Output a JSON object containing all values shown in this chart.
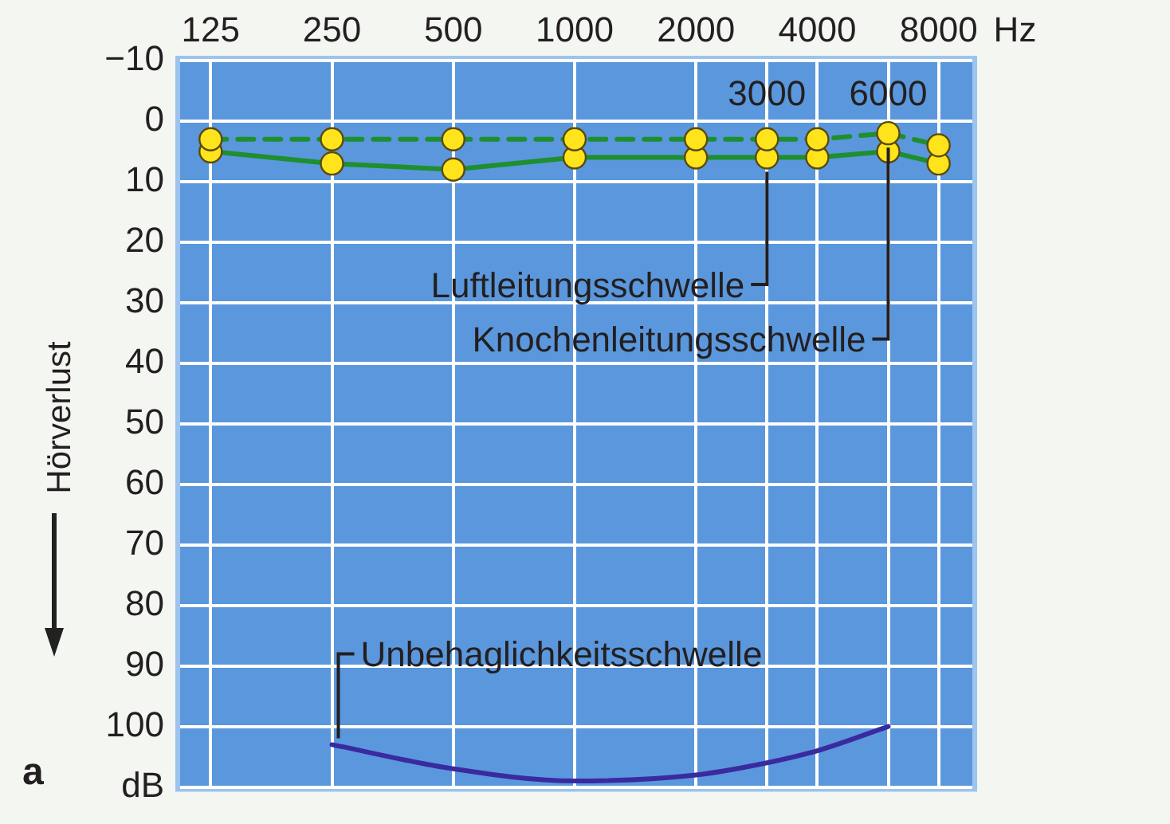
{
  "chart_data": {
    "type": "line",
    "ylabel": "Hörverlust",
    "xlabel": "Hz",
    "log": "x",
    "grid": true,
    "legend": false,
    "marker": "circle",
    "xlim": [
      105,
      9700
    ],
    "xticks": [
      125,
      250,
      500,
      1000,
      2000,
      {
        "value": 3000,
        "label": null
      },
      4000,
      {
        "value": 6000,
        "label": null
      },
      8000
    ],
    "ylim": [
      110,
      -10
    ],
    "yticks": [
      {
        "value": -10,
        "label": "−10"
      },
      0,
      10,
      20,
      30,
      40,
      50,
      60,
      70,
      80,
      90,
      100,
      {
        "value": 110,
        "label": "dB"
      }
    ],
    "series": [
      {
        "name": "Luftleitungsschwelle",
        "color": "#1e8f2e",
        "line_style": "solid",
        "x": [
          125,
          250,
          500,
          1000,
          2000,
          3000,
          4000,
          6000,
          8000
        ],
        "values": [
          5,
          7,
          8,
          6,
          6,
          6,
          6,
          5,
          7
        ]
      },
      {
        "name": "Knochenleitungsschwelle",
        "color": "#1e8f2e",
        "line_style": "dashed",
        "x": [
          125,
          250,
          500,
          1000,
          2000,
          3000,
          4000,
          6000,
          8000
        ],
        "values": [
          3,
          3,
          3,
          3,
          3,
          3,
          3,
          2,
          4
        ]
      },
      {
        "name": "Unbehaglichkeitsschwelle",
        "color": "#3a2aa0",
        "line_style": "solid",
        "marker": "none",
        "x": [
          250,
          500,
          1000,
          2000,
          3000,
          4000,
          6000
        ],
        "values": [
          103,
          107,
          109,
          108,
          106,
          104,
          100
        ]
      }
    ],
    "annotations": [
      "a",
      "3000",
      "6000"
    ]
  }
}
